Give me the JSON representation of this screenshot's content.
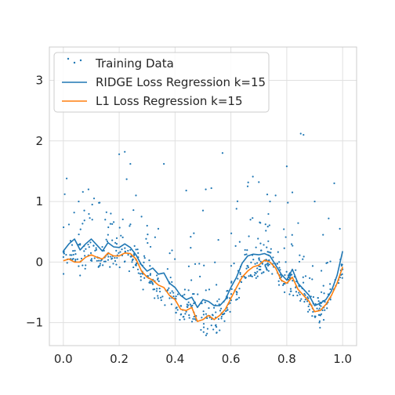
{
  "chart_data": {
    "type": "scatter+line",
    "title": "",
    "xlabel": "",
    "ylabel": "",
    "xlim": [
      -0.05,
      1.05
    ],
    "ylim": [
      -1.38,
      3.55
    ],
    "x_ticks": [
      0.0,
      0.2,
      0.4,
      0.6,
      0.8,
      1.0
    ],
    "x_tick_labels": [
      "0.0",
      "0.2",
      "0.4",
      "0.6",
      "0.8",
      "1.0"
    ],
    "y_ticks": [
      -1,
      0,
      1,
      2,
      3
    ],
    "y_tick_labels": [
      "−1",
      "0",
      "1",
      "2",
      "3"
    ],
    "grid": true,
    "legend_position": "top-left",
    "series": [
      {
        "name": "Training Data",
        "kind": "scatter",
        "color": "#1f77b4",
        "points": [
          [
            0.005,
            1.12
          ],
          [
            0.012,
            1.38
          ],
          [
            0.02,
            0.62
          ],
          [
            0.055,
            1.0
          ],
          [
            0.075,
            0.85
          ],
          [
            0.09,
            1.2
          ],
          [
            0.11,
            1.05
          ],
          [
            0.13,
            0.98
          ],
          [
            0.15,
            0.7
          ],
          [
            0.17,
            0.8
          ],
          [
            0.2,
            1.78
          ],
          [
            0.22,
            1.82
          ],
          [
            0.24,
            1.62
          ],
          [
            0.26,
            1.1
          ],
          [
            0.28,
            0.75
          ],
          [
            0.36,
            1.62
          ],
          [
            0.44,
            1.18
          ],
          [
            0.5,
            0.85
          ],
          [
            0.51,
            1.2
          ],
          [
            0.53,
            1.22
          ],
          [
            0.57,
            1.8
          ],
          [
            0.62,
            0.88
          ],
          [
            0.66,
            1.25
          ],
          [
            0.7,
            1.32
          ],
          [
            0.74,
            1.0
          ],
          [
            0.8,
            1.58
          ],
          [
            0.85,
            2.12
          ],
          [
            0.86,
            2.1
          ],
          [
            0.9,
            1.0
          ],
          [
            0.95,
            0.72
          ],
          [
            0.97,
            1.3
          ],
          [
            0.99,
            0.55
          ],
          [
            0.82,
            1.15
          ],
          [
            0.76,
            1.1
          ],
          [
            0.3,
            0.6
          ],
          [
            0.06,
            0.3
          ],
          [
            0.16,
            0.45
          ],
          [
            0.34,
            0.55
          ],
          [
            0.67,
            0.7
          ],
          [
            0.93,
            0.45
          ]
        ]
      },
      {
        "name": "RIDGE Loss Regression k=15",
        "kind": "line",
        "color": "#1f77b4",
        "x": [
          0.0,
          0.02,
          0.04,
          0.06,
          0.08,
          0.1,
          0.12,
          0.14,
          0.16,
          0.18,
          0.2,
          0.22,
          0.24,
          0.26,
          0.28,
          0.3,
          0.32,
          0.34,
          0.36,
          0.38,
          0.4,
          0.42,
          0.44,
          0.46,
          0.48,
          0.5,
          0.52,
          0.54,
          0.56,
          0.58,
          0.6,
          0.62,
          0.64,
          0.66,
          0.68,
          0.7,
          0.72,
          0.74,
          0.76,
          0.78,
          0.8,
          0.82,
          0.84,
          0.86,
          0.88,
          0.9,
          0.92,
          0.94,
          0.96,
          0.98,
          1.0
        ],
        "y": [
          0.18,
          0.3,
          0.38,
          0.2,
          0.3,
          0.38,
          0.28,
          0.18,
          0.32,
          0.25,
          0.24,
          0.3,
          0.24,
          0.12,
          -0.05,
          -0.15,
          -0.1,
          -0.2,
          -0.18,
          -0.35,
          -0.42,
          -0.55,
          -0.62,
          -0.58,
          -0.75,
          -0.62,
          -0.65,
          -0.72,
          -0.72,
          -0.62,
          -0.42,
          -0.25,
          -0.02,
          0.1,
          0.13,
          0.12,
          0.14,
          0.1,
          -0.05,
          -0.2,
          -0.3,
          -0.12,
          -0.35,
          -0.45,
          -0.55,
          -0.72,
          -0.68,
          -0.62,
          -0.48,
          -0.22,
          0.18
        ]
      },
      {
        "name": "L1 Loss Regression k=15",
        "kind": "line",
        "color": "#ff7f0e",
        "x": [
          0.0,
          0.02,
          0.04,
          0.06,
          0.08,
          0.1,
          0.12,
          0.14,
          0.16,
          0.18,
          0.2,
          0.22,
          0.24,
          0.26,
          0.28,
          0.3,
          0.32,
          0.34,
          0.36,
          0.38,
          0.4,
          0.42,
          0.44,
          0.46,
          0.48,
          0.5,
          0.52,
          0.54,
          0.56,
          0.58,
          0.6,
          0.62,
          0.64,
          0.66,
          0.68,
          0.7,
          0.72,
          0.74,
          0.76,
          0.78,
          0.8,
          0.82,
          0.84,
          0.86,
          0.88,
          0.9,
          0.92,
          0.94,
          0.96,
          0.98,
          1.0
        ],
        "y": [
          0.02,
          0.05,
          0.0,
          0.0,
          0.08,
          0.12,
          0.08,
          0.05,
          0.15,
          0.1,
          0.1,
          0.15,
          0.14,
          0.05,
          -0.15,
          -0.25,
          -0.3,
          -0.38,
          -0.42,
          -0.55,
          -0.62,
          -0.78,
          -0.8,
          -0.75,
          -0.98,
          -0.95,
          -0.88,
          -0.95,
          -0.88,
          -0.78,
          -0.6,
          -0.42,
          -0.25,
          -0.15,
          -0.08,
          -0.05,
          0.03,
          0.0,
          -0.1,
          -0.3,
          -0.35,
          -0.25,
          -0.45,
          -0.55,
          -0.65,
          -0.82,
          -0.8,
          -0.7,
          -0.55,
          -0.35,
          -0.08
        ]
      }
    ],
    "dense_scatter": {
      "seed": 7,
      "count": 620,
      "noise_sd": 0.13,
      "outlier_fraction": 0.2,
      "outlier_mean": 0.5
    }
  }
}
